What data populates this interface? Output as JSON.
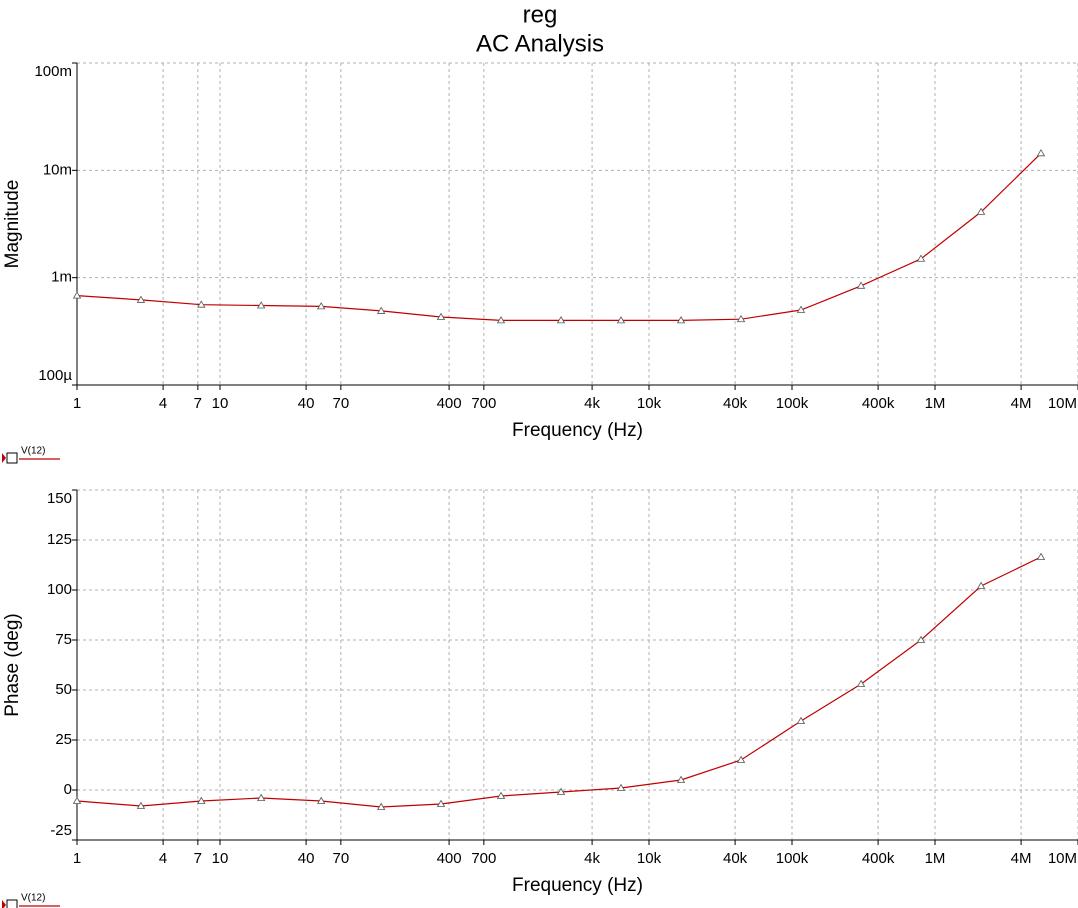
{
  "chart_data": [
    {
      "type": "line",
      "title": "reg",
      "subtitle": "AC Analysis",
      "x_label": "Frequency (Hz)",
      "y_label": "Magnitude",
      "xscale": "log",
      "yscale": "log",
      "grid": true,
      "x": [
        1,
        2.8,
        7.4,
        19.4,
        51,
        134,
        351,
        923,
        2424,
        6370,
        16750,
        44000,
        115600,
        304000,
        798000,
        2100000,
        5510000
      ],
      "series": [
        {
          "name": "V(12)",
          "color": "#c00000",
          "values": [
            0.00068,
            0.00062,
            0.00056,
            0.00055,
            0.00054,
            0.00049,
            0.00043,
            0.0004,
            0.0004,
            0.0004,
            0.0004,
            0.00041,
            0.0005,
            0.00084,
            0.0015,
            0.0041,
            0.0144
          ]
        }
      ],
      "xlim": [
        1,
        10000000
      ],
      "xticks": [
        1,
        4,
        7,
        10,
        40,
        70,
        400,
        700,
        {
          "value": 4000,
          "label": "4k"
        },
        {
          "value": 10000,
          "label": "10k"
        },
        {
          "value": 40000,
          "label": "40k"
        },
        {
          "value": 100000,
          "label": "100k"
        },
        {
          "value": 400000,
          "label": "400k"
        },
        {
          "value": 1000000,
          "label": "1M"
        },
        {
          "value": 4000000,
          "label": "4M"
        },
        {
          "value": 10000000,
          "label": "10M"
        }
      ],
      "ylim": [
        0.0001,
        0.1
      ],
      "yticks": [
        {
          "value": 0.0001,
          "label": "100µ"
        },
        {
          "value": 0.001,
          "label": "1m"
        },
        {
          "value": 0.01,
          "label": "10m"
        },
        {
          "value": 0.1,
          "label": "100m"
        }
      ]
    },
    {
      "type": "line",
      "x_label": "Frequency (Hz)",
      "y_label": "Phase (deg)",
      "xscale": "log",
      "grid": true,
      "x": [
        1,
        2.8,
        7.4,
        19.4,
        51,
        134,
        351,
        923,
        2424,
        6370,
        16750,
        44000,
        115600,
        304000,
        798000,
        2100000,
        5510000
      ],
      "series": [
        {
          "name": "V(12)",
          "color": "#c00000",
          "values": [
            -5.5,
            -8,
            -5.5,
            -4,
            -5.5,
            -8.5,
            -7,
            -3,
            -1,
            1,
            5,
            15,
            34.5,
            53,
            75,
            102,
            116.5
          ]
        }
      ],
      "xlim": [
        1,
        10000000
      ],
      "xticks": [
        1,
        4,
        7,
        10,
        40,
        70,
        400,
        700,
        {
          "value": 4000,
          "label": "4k"
        },
        {
          "value": 10000,
          "label": "10k"
        },
        {
          "value": 40000,
          "label": "40k"
        },
        {
          "value": 100000,
          "label": "100k"
        },
        {
          "value": 400000,
          "label": "400k"
        },
        {
          "value": 1000000,
          "label": "1M"
        },
        {
          "value": 4000000,
          "label": "4M"
        },
        {
          "value": 10000000,
          "label": "10M"
        }
      ],
      "ylim": [
        -25,
        150
      ],
      "yticks": [
        -25,
        0,
        25,
        50,
        75,
        100,
        125,
        150
      ]
    }
  ]
}
